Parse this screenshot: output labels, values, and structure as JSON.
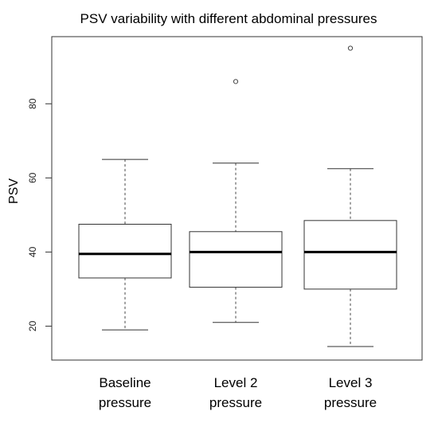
{
  "chart_data": {
    "type": "boxplot",
    "title": "PSV variability with different abdominal pressures",
    "xlabel": "",
    "ylabel": "PSV",
    "ylim": [
      10,
      100
    ],
    "yticks": [
      20,
      40,
      60,
      80
    ],
    "grid": false,
    "categories": [
      [
        "Baseline",
        "pressure"
      ],
      [
        "Level 2",
        "pressure"
      ],
      [
        "Level 3",
        "pressure"
      ]
    ],
    "boxes": [
      {
        "whisker_low": 19,
        "q1": 33,
        "median": 39.5,
        "q3": 47.5,
        "whisker_high": 65,
        "outliers": []
      },
      {
        "whisker_low": 21,
        "q1": 30.5,
        "median": 40,
        "q3": 45.5,
        "whisker_high": 64,
        "outliers": [
          86
        ]
      },
      {
        "whisker_low": 14.5,
        "q1": 30,
        "median": 40,
        "q3": 48.5,
        "whisker_high": 62.5,
        "outliers": [
          95
        ]
      }
    ]
  }
}
